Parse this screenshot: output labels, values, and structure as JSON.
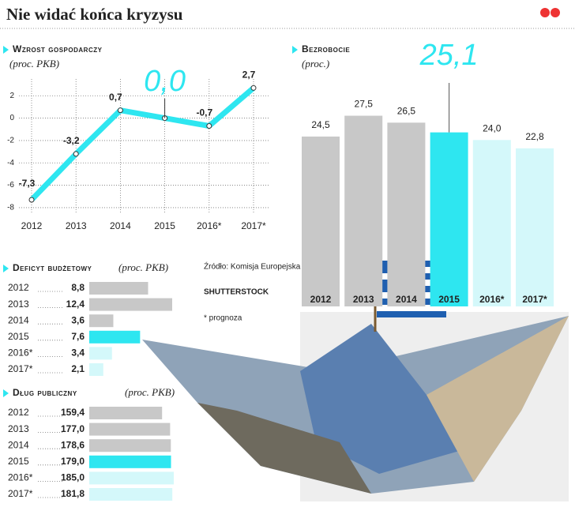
{
  "title": "Nie widać końca kryzysu",
  "source": "Źródło: Komisja Europejska",
  "photo_credit": "SHUTTERSTOCK",
  "note": "* prognoza",
  "chart_data": [
    {
      "type": "line",
      "title": "Wzrost gospodarczy",
      "subtitle": "(proc. PKB)",
      "categories": [
        "2012",
        "2013",
        "2014",
        "2015",
        "2016*",
        "2017*"
      ],
      "values": [
        -7.3,
        -3.2,
        0.7,
        0.0,
        -0.7,
        2.7
      ],
      "value_labels": [
        "-7,3",
        "-3,2",
        "0,7",
        "0,0",
        "-0,7",
        "2,7"
      ],
      "color": "#2ee6f0",
      "ylim": [
        -8.5,
        3.5
      ],
      "yticks": [
        2,
        0,
        -2,
        -4,
        -6,
        -8
      ],
      "grid": true
    },
    {
      "type": "bar",
      "title": "Bezrobocie",
      "subtitle": "(proc.)",
      "categories": [
        "2012",
        "2013",
        "2014",
        "2015",
        "2016*",
        "2017*"
      ],
      "values": [
        24.5,
        27.5,
        26.5,
        25.1,
        24.0,
        22.8
      ],
      "value_labels": [
        "24,5",
        "27,5",
        "26,5",
        "25,1",
        "24,0",
        "22,8"
      ],
      "colors": [
        "#c8c8c8",
        "#c8c8c8",
        "#c8c8c8",
        "#2ee6f0",
        "#d4f8fa",
        "#d4f8fa"
      ]
    },
    {
      "type": "barh",
      "title": "Deficyt budżetowy",
      "subtitle": "(proc. PKB)",
      "categories": [
        "2012",
        "2013",
        "2014",
        "2015",
        "2016*",
        "2017*"
      ],
      "values": [
        8.8,
        12.4,
        3.6,
        7.6,
        3.4,
        2.1
      ],
      "value_labels": [
        "8,8",
        "12,4",
        "3,6",
        "7,6",
        "3,4",
        "2,1"
      ],
      "colors": [
        "#c8c8c8",
        "#c8c8c8",
        "#c8c8c8",
        "#2ee6f0",
        "#d4f8fa",
        "#d4f8fa"
      ]
    },
    {
      "type": "barh",
      "title": "Dług publiczny",
      "subtitle": "(proc. PKB)",
      "categories": [
        "2012",
        "2013",
        "2014",
        "2015",
        "2016*",
        "2017*"
      ],
      "values": [
        159.4,
        177.0,
        178.6,
        179.0,
        185.0,
        181.8
      ],
      "value_labels": [
        "159,4",
        "177,0",
        "178,6",
        "179,0",
        "185,0",
        "181,8"
      ],
      "colors": [
        "#c8c8c8",
        "#c8c8c8",
        "#c8c8c8",
        "#2ee6f0",
        "#d4f8fa",
        "#d4f8fa"
      ]
    }
  ]
}
